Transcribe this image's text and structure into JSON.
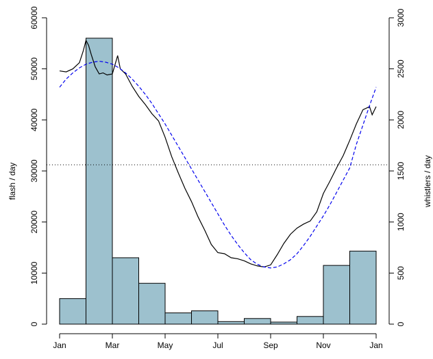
{
  "chart_data": {
    "type": "bar",
    "title": "",
    "xlabel": "",
    "ylabel": "flash / day",
    "y2label": "whistlers / day",
    "ylim": [
      0,
      60000
    ],
    "y2lim": [
      0,
      3000
    ],
    "xlim": [
      0,
      12
    ],
    "x_ticks": [
      {
        "label": "Jan",
        "x": 0
      },
      {
        "label": "Mar",
        "x": 2
      },
      {
        "label": "May",
        "x": 4
      },
      {
        "label": "Jul",
        "x": 6
      },
      {
        "label": "Sep",
        "x": 8
      },
      {
        "label": "Nov",
        "x": 10
      },
      {
        "label": "Jan",
        "x": 12
      }
    ],
    "y_ticks": [
      "0",
      "10000",
      "20000",
      "30000",
      "40000",
      "50000",
      "60000"
    ],
    "y2_ticks": [
      "0",
      "500",
      "1000",
      "1500",
      "2000",
      "2500",
      "3000"
    ],
    "bars": {
      "name": "",
      "color": "#9dc1ce",
      "edges": [
        0,
        1,
        2,
        3,
        4,
        5,
        6,
        7,
        8,
        9,
        10,
        11,
        12
      ],
      "values": [
        5000,
        56000,
        13000,
        8000,
        2200,
        2600,
        500,
        1100,
        400,
        1500,
        11500,
        14300
      ]
    },
    "series": [
      {
        "name": "",
        "axis": "right",
        "style": "solid",
        "color": "#000000",
        "x": [
          0,
          0.25,
          0.5,
          0.75,
          0.9,
          1.0,
          1.1,
          1.2,
          1.35,
          1.5,
          1.65,
          1.8,
          2.0,
          2.2,
          2.3,
          2.5,
          2.75,
          3.0,
          3.25,
          3.5,
          3.75,
          4.0,
          4.25,
          4.5,
          4.75,
          5.0,
          5.25,
          5.5,
          5.75,
          6.0,
          6.25,
          6.5,
          6.75,
          7.0,
          7.25,
          7.5,
          7.75,
          8.0,
          8.25,
          8.5,
          8.75,
          9.0,
          9.25,
          9.5,
          9.75,
          10.0,
          10.25,
          10.5,
          10.75,
          11.0,
          11.25,
          11.5,
          11.75,
          11.85,
          12.0
        ],
        "y": [
          2480,
          2470,
          2500,
          2560,
          2680,
          2780,
          2730,
          2640,
          2520,
          2450,
          2460,
          2440,
          2450,
          2630,
          2500,
          2450,
          2330,
          2230,
          2150,
          2060,
          1990,
          1830,
          1640,
          1480,
          1330,
          1200,
          1050,
          920,
          780,
          700,
          690,
          650,
          640,
          620,
          590,
          570,
          560,
          580,
          680,
          790,
          880,
          940,
          980,
          1010,
          1100,
          1280,
          1400,
          1530,
          1650,
          1800,
          1960,
          2100,
          2130,
          2050,
          2130
        ]
      },
      {
        "name": "",
        "axis": "right",
        "style": "dashed",
        "color": "#0000ee",
        "x": [
          0,
          0.25,
          0.5,
          0.75,
          1.0,
          1.25,
          1.5,
          1.75,
          2.0,
          2.25,
          2.5,
          2.75,
          3.0,
          3.25,
          3.5,
          3.75,
          4.0,
          4.25,
          4.5,
          4.75,
          5.0,
          5.25,
          5.5,
          5.75,
          6.0,
          6.25,
          6.5,
          6.75,
          7.0,
          7.25,
          7.5,
          7.75,
          8.0,
          8.25,
          8.5,
          8.75,
          9.0,
          9.25,
          9.5,
          9.75,
          10.0,
          10.25,
          10.5,
          10.75,
          11.0,
          11.25,
          11.5,
          11.75,
          12.0
        ],
        "y": [
          2320,
          2400,
          2460,
          2510,
          2545,
          2565,
          2575,
          2565,
          2545,
          2510,
          2460,
          2400,
          2330,
          2250,
          2160,
          2060,
          1960,
          1850,
          1740,
          1630,
          1520,
          1410,
          1300,
          1190,
          1080,
          970,
          870,
          780,
          700,
          630,
          585,
          560,
          550,
          560,
          590,
          630,
          690,
          770,
          860,
          960,
          1060,
          1170,
          1290,
          1410,
          1530,
          1760,
          1950,
          2140,
          2320
        ]
      }
    ],
    "reference_line": {
      "axis": "right",
      "value": 1560,
      "style": "dotted"
    },
    "grid": false,
    "legend": "none"
  }
}
